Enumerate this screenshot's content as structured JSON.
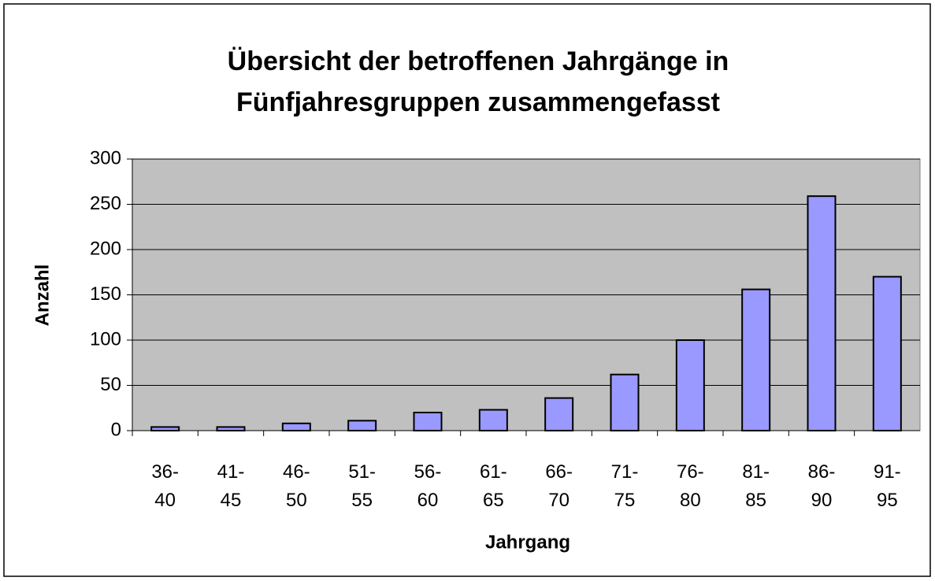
{
  "chart_data": {
    "type": "bar",
    "title": "Übersicht der betroffenen Jahrgänge in Fünfjahresgruppen zusammengefasst",
    "x_label": "Jahrgang",
    "y_label": "Anzahl",
    "categories": [
      "36-40",
      "41-45",
      "46-50",
      "51-55",
      "56-60",
      "61-65",
      "66-70",
      "71-75",
      "76-80",
      "81-85",
      "86-90",
      "91-95"
    ],
    "values": [
      4,
      4,
      8,
      11,
      20,
      23,
      36,
      62,
      100,
      156,
      259,
      170
    ],
    "color": "#9999ff",
    "ylim": [
      0,
      300
    ],
    "yticks": [
      0,
      50,
      100,
      150,
      200,
      250,
      300
    ],
    "grid": true
  }
}
